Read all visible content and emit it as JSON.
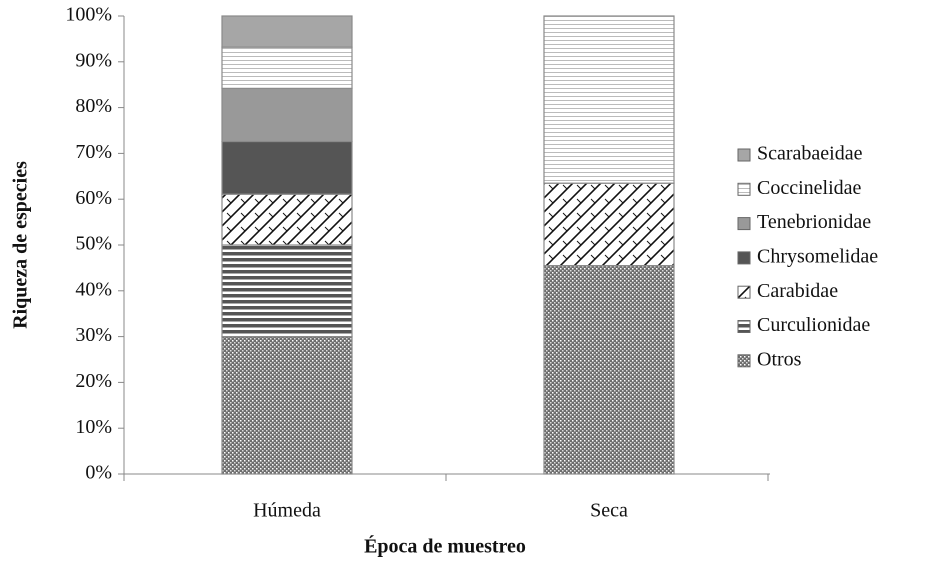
{
  "chart_data": {
    "type": "stacked_bar_100",
    "x_label": "Época de muestreo",
    "y_label": "Riqueza de especies",
    "categories": [
      "Húmeda",
      "Seca"
    ],
    "series": [
      {
        "name": "Otros",
        "color": "#6e6e6e",
        "pattern": "dots",
        "values": [
          30,
          45.5
        ]
      },
      {
        "name": "Curculionidae",
        "color": "#555555",
        "pattern": "hlines",
        "values": [
          20,
          0
        ]
      },
      {
        "name": "Carabidae",
        "color": "#111111",
        "pattern": "diag",
        "values": [
          11.1,
          18
        ]
      },
      {
        "name": "Chrysomelidae",
        "color": "#555555",
        "pattern": "solid",
        "values": [
          11.5,
          0
        ]
      },
      {
        "name": "Tenebrionidae",
        "color": "#999999",
        "pattern": "solid",
        "values": [
          11.6,
          0
        ]
      },
      {
        "name": "Coccinelidae",
        "color": "#bbbbbb",
        "pattern": "finelines",
        "values": [
          9,
          36.5
        ]
      },
      {
        "name": "Scarabaeidae",
        "color": "#a6a6a6",
        "pattern": "solid",
        "values": [
          6.8,
          0
        ]
      }
    ],
    "ylim": [
      0,
      100
    ],
    "yticks": [
      {
        "value": 0,
        "label": "0%"
      },
      {
        "value": 10,
        "label": "10%"
      },
      {
        "value": 20,
        "label": "20%"
      },
      {
        "value": 30,
        "label": "30%"
      },
      {
        "value": 40,
        "label": "40%"
      },
      {
        "value": 50,
        "label": "50%"
      },
      {
        "value": 60,
        "label": "60%"
      },
      {
        "value": 70,
        "label": "70%"
      },
      {
        "value": 80,
        "label": "80%"
      },
      {
        "value": 90,
        "label": "90%"
      },
      {
        "value": 100,
        "label": "100%"
      }
    ],
    "grid": false,
    "legend": "right"
  }
}
